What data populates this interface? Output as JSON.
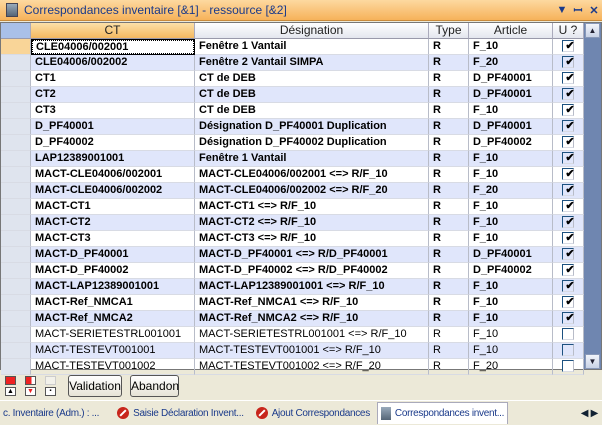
{
  "window": {
    "title": "Correspondances inventaire [&1] - ressource [&2]"
  },
  "columns": [
    "CT",
    "Désignation",
    "Type",
    "Article",
    "U ?"
  ],
  "rows": [
    {
      "ct": "CLE04006/002001",
      "designation": "Fenêtre 1 Vantail",
      "type": "R",
      "article": "F_10",
      "u": true,
      "bold": true
    },
    {
      "ct": "CLE04006/002002",
      "designation": "Fenêtre 2 Vantail SIMPA",
      "type": "R",
      "article": "F_20",
      "u": true,
      "bold": true
    },
    {
      "ct": "CT1",
      "designation": "CT de DEB",
      "type": "R",
      "article": "D_PF40001",
      "u": true,
      "bold": true
    },
    {
      "ct": "CT2",
      "designation": "CT de DEB",
      "type": "R",
      "article": "D_PF40001",
      "u": true,
      "bold": true
    },
    {
      "ct": "CT3",
      "designation": "CT de DEB",
      "type": "R",
      "article": "F_10",
      "u": true,
      "bold": true
    },
    {
      "ct": "D_PF40001",
      "designation": "Désignation D_PF40001 Duplication",
      "type": "R",
      "article": "D_PF40001",
      "u": true,
      "bold": true
    },
    {
      "ct": "D_PF40002",
      "designation": "Désignation D_PF40002 Duplication",
      "type": "R",
      "article": "D_PF40002",
      "u": true,
      "bold": true
    },
    {
      "ct": "LAP12389001001",
      "designation": "Fenêtre 1 Vantail",
      "type": "R",
      "article": "F_10",
      "u": true,
      "bold": true
    },
    {
      "ct": "MACT-CLE04006/002001",
      "designation": "MACT-CLE04006/002001 <=> R/F_10",
      "type": "R",
      "article": "F_10",
      "u": true,
      "bold": true
    },
    {
      "ct": "MACT-CLE04006/002002",
      "designation": "MACT-CLE04006/002002 <=> R/F_20",
      "type": "R",
      "article": "F_20",
      "u": true,
      "bold": true
    },
    {
      "ct": "MACT-CT1",
      "designation": "MACT-CT1 <=> R/F_10",
      "type": "R",
      "article": "F_10",
      "u": true,
      "bold": true
    },
    {
      "ct": "MACT-CT2",
      "designation": "MACT-CT2 <=> R/F_10",
      "type": "R",
      "article": "F_10",
      "u": true,
      "bold": true
    },
    {
      "ct": "MACT-CT3",
      "designation": "MACT-CT3 <=> R/F_10",
      "type": "R",
      "article": "F_10",
      "u": true,
      "bold": true
    },
    {
      "ct": "MACT-D_PF40001",
      "designation": "MACT-D_PF40001 <=> R/D_PF40001",
      "type": "R",
      "article": "D_PF40001",
      "u": true,
      "bold": true
    },
    {
      "ct": "MACT-D_PF40002",
      "designation": "MACT-D_PF40002 <=> R/D_PF40002",
      "type": "R",
      "article": "D_PF40002",
      "u": true,
      "bold": true
    },
    {
      "ct": "MACT-LAP12389001001",
      "designation": "MACT-LAP12389001001 <=> R/F_10",
      "type": "R",
      "article": "F_10",
      "u": true,
      "bold": true
    },
    {
      "ct": "MACT-Ref_NMCA1",
      "designation": "MACT-Ref_NMCA1 <=> R/F_10",
      "type": "R",
      "article": "F_10",
      "u": true,
      "bold": true
    },
    {
      "ct": "MACT-Ref_NMCA2",
      "designation": "MACT-Ref_NMCA2 <=> R/F_10",
      "type": "R",
      "article": "F_10",
      "u": true,
      "bold": true
    },
    {
      "ct": "MACT-SERIETESTRL001001",
      "designation": "MACT-SERIETESTRL001001 <=> R/F_10",
      "type": "R",
      "article": "F_10",
      "u": false,
      "bold": false
    },
    {
      "ct": "MACT-TESTEVT001001",
      "designation": "MACT-TESTEVT001001 <=> R/F_10",
      "type": "R",
      "article": "F_10",
      "u": false,
      "bold": false
    },
    {
      "ct": "MACT-TESTEVT001002",
      "designation": "MACT-TESTEVT001002 <=> R/F_20",
      "type": "R",
      "article": "F_20",
      "u": false,
      "bold": false
    }
  ],
  "toolbar": {
    "validation": "Validation",
    "abandon": "Abandon"
  },
  "tabs": [
    {
      "label": "c. Inventaire (Adm.) : ...",
      "icon": "none"
    },
    {
      "label": "Saisie Déclaration Invent...",
      "icon": "stop-icon"
    },
    {
      "label": "Ajout Correspondances",
      "icon": "stop-icon"
    },
    {
      "label": "Correspondances invent...",
      "icon": "document-icon",
      "active": true
    }
  ],
  "colors": {
    "title_bar": "#f6b25a",
    "alt_row": "#e0e6fb",
    "check": "#2a9a2a"
  }
}
